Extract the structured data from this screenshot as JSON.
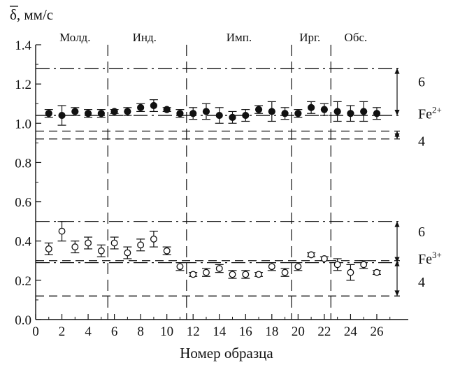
{
  "chart_data": {
    "type": "scatter",
    "xlabel": "Номер образца",
    "ylabel": "δ, мм/с",
    "xlim": [
      0,
      28.4
    ],
    "ylim": [
      0,
      1.4
    ],
    "x_ticks": [
      0,
      2,
      4,
      6,
      8,
      10,
      12,
      14,
      16,
      18,
      20,
      22,
      24,
      26
    ],
    "y_ticks": [
      "0.0",
      "0.2",
      "0.4",
      "0.6",
      "0.8",
      "1.0",
      "1.2",
      "1.4"
    ],
    "regions": [
      {
        "label": "Молд.",
        "x_center": 3.0
      },
      {
        "label": "Инд.",
        "x_center": 8.3
      },
      {
        "label": "Имп.",
        "x_center": 15.5
      },
      {
        "label": "Ирг.",
        "x_center": 20.9
      },
      {
        "label": "Обс.",
        "x_center": 24.4
      }
    ],
    "region_dividers": [
      5.5,
      11.5,
      19.5,
      22.5
    ],
    "series": [
      {
        "name": "Fe2+",
        "marker": "filled-circle",
        "points": [
          {
            "x": 1,
            "y": 1.05,
            "err": 0.02
          },
          {
            "x": 2,
            "y": 1.04,
            "err": 0.05
          },
          {
            "x": 3,
            "y": 1.06,
            "err": 0.02
          },
          {
            "x": 4,
            "y": 1.05,
            "err": 0.02
          },
          {
            "x": 5,
            "y": 1.05,
            "err": 0.02
          },
          {
            "x": 6,
            "y": 1.06,
            "err": 0.01
          },
          {
            "x": 7,
            "y": 1.06,
            "err": 0.02
          },
          {
            "x": 8,
            "y": 1.08,
            "err": 0.02
          },
          {
            "x": 9,
            "y": 1.09,
            "err": 0.03
          },
          {
            "x": 10,
            "y": 1.07,
            "err": 0.01
          },
          {
            "x": 11,
            "y": 1.05,
            "err": 0.02
          },
          {
            "x": 12,
            "y": 1.05,
            "err": 0.03
          },
          {
            "x": 13,
            "y": 1.06,
            "err": 0.04
          },
          {
            "x": 14,
            "y": 1.04,
            "err": 0.04
          },
          {
            "x": 15,
            "y": 1.03,
            "err": 0.03
          },
          {
            "x": 16,
            "y": 1.04,
            "err": 0.03
          },
          {
            "x": 17,
            "y": 1.07,
            "err": 0.02
          },
          {
            "x": 18,
            "y": 1.06,
            "err": 0.05
          },
          {
            "x": 19,
            "y": 1.05,
            "err": 0.03
          },
          {
            "x": 20,
            "y": 1.05,
            "err": 0.02
          },
          {
            "x": 21,
            "y": 1.08,
            "err": 0.03
          },
          {
            "x": 22,
            "y": 1.07,
            "err": 0.03
          },
          {
            "x": 23,
            "y": 1.06,
            "err": 0.05
          },
          {
            "x": 24,
            "y": 1.05,
            "err": 0.04
          },
          {
            "x": 25,
            "y": 1.06,
            "err": 0.05
          },
          {
            "x": 26,
            "y": 1.05,
            "err": 0.03
          }
        ]
      },
      {
        "name": "Fe3+",
        "marker": "open-circle",
        "points": [
          {
            "x": 1,
            "y": 0.36,
            "err": 0.03
          },
          {
            "x": 2,
            "y": 0.45,
            "err": 0.05
          },
          {
            "x": 3,
            "y": 0.37,
            "err": 0.03
          },
          {
            "x": 4,
            "y": 0.39,
            "err": 0.03
          },
          {
            "x": 5,
            "y": 0.35,
            "err": 0.03
          },
          {
            "x": 6,
            "y": 0.39,
            "err": 0.03
          },
          {
            "x": 7,
            "y": 0.34,
            "err": 0.03
          },
          {
            "x": 8,
            "y": 0.38,
            "err": 0.03
          },
          {
            "x": 9,
            "y": 0.41,
            "err": 0.04
          },
          {
            "x": 10,
            "y": 0.35,
            "err": 0.02
          },
          {
            "x": 11,
            "y": 0.27,
            "err": 0.02
          },
          {
            "x": 12,
            "y": 0.23,
            "err": 0.01
          },
          {
            "x": 13,
            "y": 0.24,
            "err": 0.02
          },
          {
            "x": 14,
            "y": 0.26,
            "err": 0.02
          },
          {
            "x": 15,
            "y": 0.23,
            "err": 0.02
          },
          {
            "x": 16,
            "y": 0.23,
            "err": 0.02
          },
          {
            "x": 17,
            "y": 0.23,
            "err": 0.01
          },
          {
            "x": 18,
            "y": 0.27,
            "err": 0.02
          },
          {
            "x": 19,
            "y": 0.24,
            "err": 0.02
          },
          {
            "x": 20,
            "y": 0.27,
            "err": 0.02
          },
          {
            "x": 21,
            "y": 0.33,
            "err": 0.01
          },
          {
            "x": 22,
            "y": 0.31,
            "err": 0.01
          },
          {
            "x": 23,
            "y": 0.28,
            "err": 0.03
          },
          {
            "x": 24,
            "y": 0.24,
            "err": 0.04
          },
          {
            "x": 25,
            "y": 0.28,
            "err": 0.02
          },
          {
            "x": 26,
            "y": 0.24,
            "err": 0.01
          }
        ]
      }
    ],
    "reference_lines": [
      {
        "y": 1.28,
        "style": "dash-dot"
      },
      {
        "y": 1.04,
        "style": "dash-dot"
      },
      {
        "y": 0.96,
        "style": "dashed"
      },
      {
        "y": 0.92,
        "style": "dashed"
      },
      {
        "y": 0.5,
        "style": "dash-dot"
      },
      {
        "y": 0.29,
        "style": "dash-dot"
      },
      {
        "y": 0.3,
        "style": "dashed"
      },
      {
        "y": 0.12,
        "style": "dashed"
      }
    ],
    "coordination_brackets": [
      {
        "label": "6",
        "y_top": 1.28,
        "y_bottom": 1.04
      },
      {
        "label": "4",
        "y_top": 0.96,
        "y_bottom": 0.92
      },
      {
        "label": "6",
        "y_top": 0.5,
        "y_bottom": 0.29
      },
      {
        "label": "4",
        "y_top": 0.3,
        "y_bottom": 0.12
      }
    ],
    "ion_labels": [
      {
        "base": "Fe",
        "sup": "2+",
        "y": 1.05
      },
      {
        "base": "Fe",
        "sup": "3+",
        "y": 0.31
      }
    ]
  }
}
